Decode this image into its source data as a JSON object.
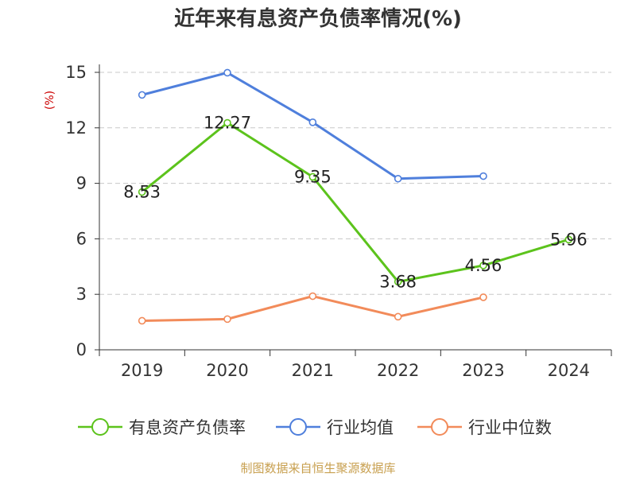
{
  "chart_data": {
    "type": "line",
    "title": "近年来有息资产负债率情况(%)",
    "ylabel": "(%)",
    "categories": [
      "2019",
      "2020",
      "2021",
      "2022",
      "2023",
      "2024"
    ],
    "ylim": [
      0,
      15
    ],
    "yticks": [
      0,
      3,
      6,
      9,
      12,
      15
    ],
    "grid": true,
    "legend_position": "bottom",
    "series": [
      {
        "name": "有息资产负债率",
        "color": "#5cc31c",
        "values": [
          8.53,
          12.27,
          9.35,
          3.68,
          4.56,
          5.96
        ],
        "data_labels": [
          "8.53",
          "12.27",
          "9.35",
          "3.68",
          "4.56",
          "5.96"
        ]
      },
      {
        "name": "行业均值",
        "color": "#4f7fdc",
        "values": [
          13.78,
          14.98,
          12.3,
          9.25,
          9.39,
          null
        ]
      },
      {
        "name": "行业中位数",
        "color": "#f28b5a",
        "values": [
          1.57,
          1.66,
          2.9,
          1.79,
          2.84,
          null
        ]
      }
    ]
  },
  "source": "制图数据来自恒生聚源数据库"
}
